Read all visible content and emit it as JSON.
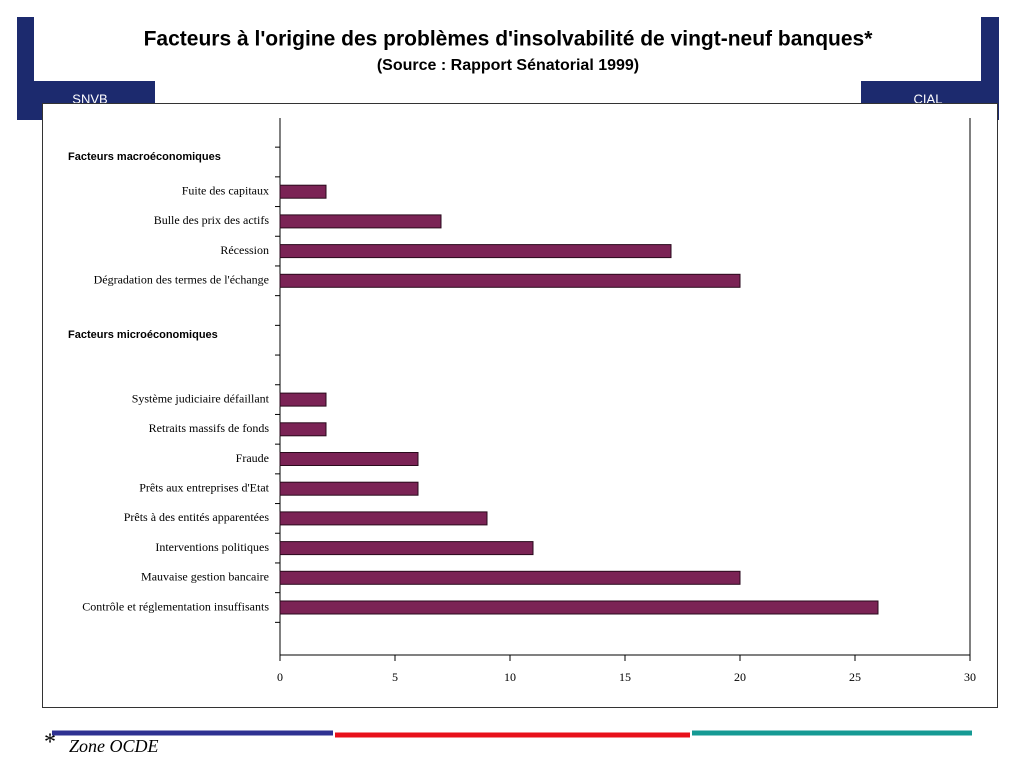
{
  "title": "Facteurs à l'origine des problèmes d'insolvabilité de vingt-neuf banques*",
  "subtitle": "(Source : Rapport Sénatorial 1999)",
  "logos": [
    "SNVB",
    "CIAL"
  ],
  "footnote": {
    "mark": "*",
    "text": "Zone OCDE"
  },
  "chart_data": {
    "type": "bar",
    "orientation": "horizontal",
    "color": "#7b2355",
    "groups": [
      {
        "title": "Facteurs macroéconomiques",
        "categories": [
          "Fuite des capitaux",
          "Bulle des prix des actifs",
          "Récession",
          "Dégradation des termes de l'échange"
        ],
        "values": [
          2,
          7,
          17,
          20
        ]
      },
      {
        "title": "Facteurs microéconomiques",
        "categories": [
          "Système judiciaire défaillant",
          "Retraits massifs de fonds",
          "Fraude",
          "Prêts aux entreprises d'Etat",
          "Prêts à des entités apparentées",
          "Interventions politiques",
          "Mauvaise gestion bancaire",
          "Contrôle et réglementation insuffisants"
        ],
        "values": [
          2,
          2,
          6,
          6,
          9,
          11,
          20,
          26
        ]
      }
    ],
    "xlim": [
      0,
      30
    ],
    "xticks": [
      0,
      5,
      10,
      15,
      20,
      25,
      30
    ]
  }
}
